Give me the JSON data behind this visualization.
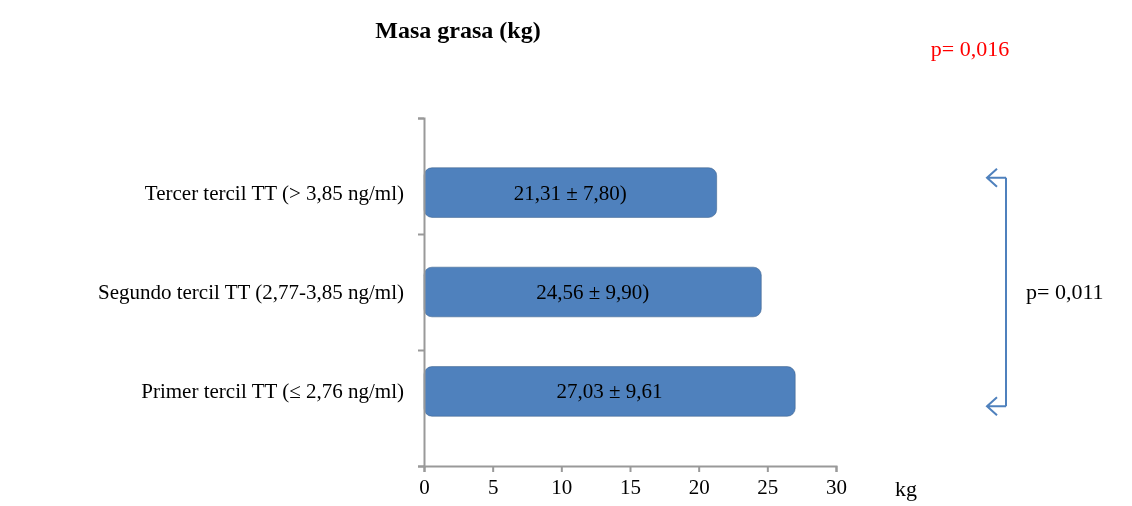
{
  "chart_data": {
    "type": "bar",
    "orientation": "horizontal",
    "title": "Masa grasa (kg)",
    "xlabel": "kg",
    "categories": [
      "Tercer tercil TT (> 3,85 ng/ml)",
      "Segundo tercil TT (2,77-3,85 ng/ml)",
      "Primer tercil TT (≤ 2,76 ng/ml)"
    ],
    "values": [
      21.31,
      24.56,
      27.03
    ],
    "value_labels": [
      "21,31 ± 7,80)",
      "24,56 ± 9,90)",
      "27,03 ± 9,61"
    ],
    "color": "#4f81bd",
    "xlim": [
      0,
      30
    ],
    "xticks": [
      0,
      5,
      10,
      15,
      20,
      25,
      30
    ],
    "grid": false,
    "annotations": [
      "p= 0,016",
      "p= 0,011"
    ]
  }
}
